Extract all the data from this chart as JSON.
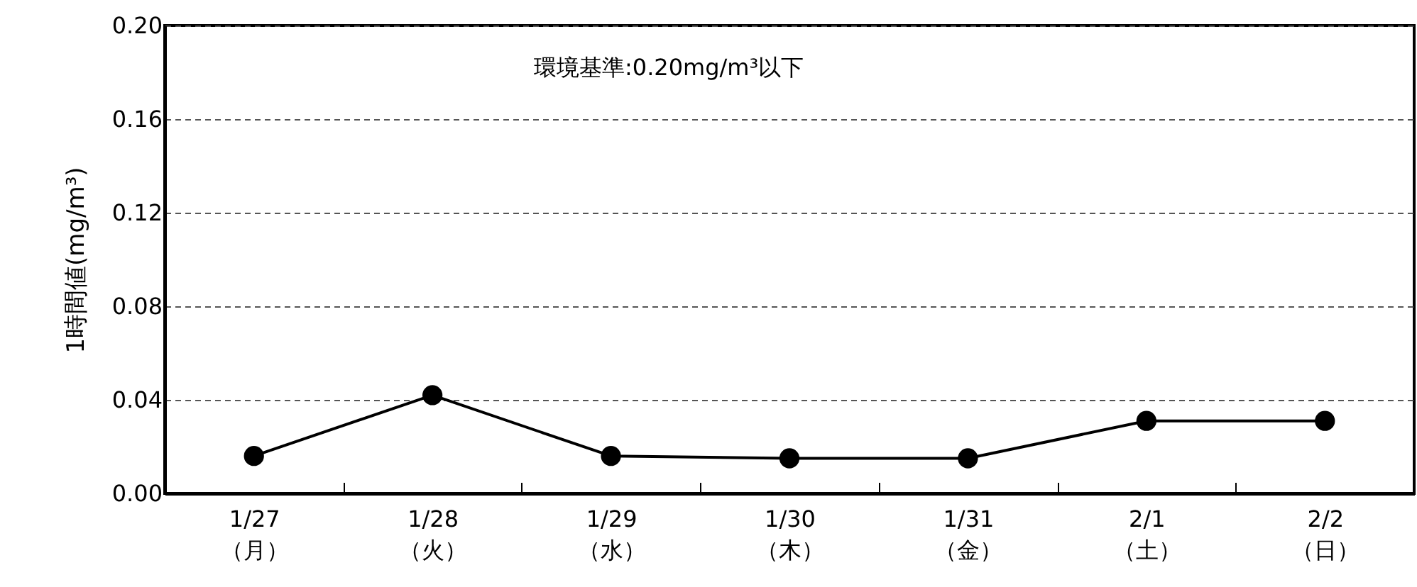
{
  "chart_data": {
    "type": "line",
    "ylabel": "1時間値(mg/m³)",
    "annotations": [
      "環境基準:0.20mg/m³以下"
    ],
    "categories": [
      "1/27\n（月）",
      "1/28\n（火）",
      "1/29\n（水）",
      "1/30\n（木）",
      "1/31\n（金）",
      "2/1\n（土）",
      "2/2\n（日）"
    ],
    "series": [
      {
        "color": "#000000",
        "values": [
          0.016,
          0.042,
          0.016,
          0.015,
          0.015,
          0.031,
          0.031
        ]
      }
    ],
    "ylim": [
      0,
      0.2
    ],
    "yticks": [
      {
        "value": 0,
        "label": "0.00"
      },
      {
        "value": 0.04,
        "label": "0.04"
      },
      {
        "value": 0.08,
        "label": "0.08"
      },
      {
        "value": 0.12,
        "label": "0.12"
      },
      {
        "value": 0.16,
        "label": "0.16"
      },
      {
        "value": 0.2,
        "label": "0.20"
      }
    ],
    "grid": "y",
    "marker": "circle",
    "line_style": "solid"
  }
}
